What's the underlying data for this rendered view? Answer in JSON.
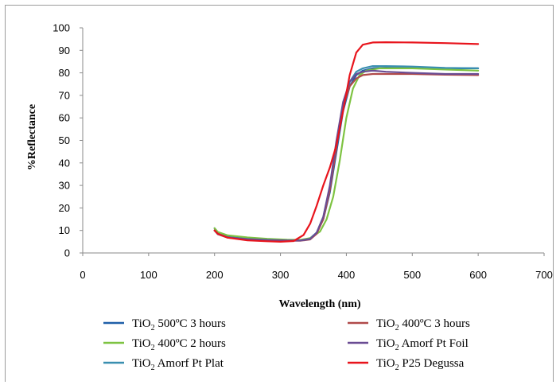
{
  "chart_data": {
    "type": "line",
    "title": "",
    "xlabel": "Wavelength (nm)",
    "ylabel": "%Reflectance",
    "xlim": [
      0,
      700
    ],
    "ylim": [
      0,
      100
    ],
    "xticks": [
      "0",
      "100",
      "200",
      "300",
      "400",
      "500",
      "600",
      "700"
    ],
    "yticks": [
      "0",
      "10",
      "20",
      "30",
      "40",
      "50",
      "60",
      "70",
      "80",
      "90",
      "100"
    ],
    "grid": false,
    "legend_position": "bottom",
    "series": [
      {
        "name": "TiO2 500ºC 3 hours",
        "color": "#1f5fa8",
        "points": [
          [
            200,
            11
          ],
          [
            205,
            8.8
          ],
          [
            220,
            7.2
          ],
          [
            250,
            6.4
          ],
          [
            280,
            5.9
          ],
          [
            310,
            5.6
          ],
          [
            330,
            5.6
          ],
          [
            345,
            6.5
          ],
          [
            355,
            9
          ],
          [
            365,
            15
          ],
          [
            375,
            27
          ],
          [
            385,
            45
          ],
          [
            395,
            63
          ],
          [
            405,
            74
          ],
          [
            415,
            79
          ],
          [
            425,
            81
          ],
          [
            440,
            82
          ],
          [
            460,
            82.3
          ],
          [
            500,
            82.2
          ],
          [
            550,
            82
          ],
          [
            600,
            82
          ]
        ]
      },
      {
        "name": "TiO2 400ºC 2 hours",
        "color": "#7ec342",
        "points": [
          [
            200,
            11
          ],
          [
            205,
            9.3
          ],
          [
            220,
            7.8
          ],
          [
            250,
            6.9
          ],
          [
            280,
            6.3
          ],
          [
            310,
            5.9
          ],
          [
            330,
            5.8
          ],
          [
            345,
            6.6
          ],
          [
            360,
            9.5
          ],
          [
            370,
            15
          ],
          [
            380,
            25
          ],
          [
            390,
            41
          ],
          [
            400,
            60
          ],
          [
            410,
            73
          ],
          [
            420,
            79
          ],
          [
            430,
            81
          ],
          [
            450,
            82
          ],
          [
            500,
            82
          ],
          [
            550,
            81.5
          ],
          [
            600,
            81
          ]
        ]
      },
      {
        "name": "TiO2 Amorf Pt Plat",
        "color": "#3a8fb0",
        "points": [
          [
            200,
            10
          ],
          [
            205,
            8.5
          ],
          [
            220,
            7
          ],
          [
            250,
            6.2
          ],
          [
            280,
            5.8
          ],
          [
            310,
            5.5
          ],
          [
            330,
            5.5
          ],
          [
            345,
            6.3
          ],
          [
            355,
            9
          ],
          [
            365,
            16
          ],
          [
            375,
            29
          ],
          [
            385,
            48
          ],
          [
            395,
            66
          ],
          [
            405,
            76
          ],
          [
            415,
            80.5
          ],
          [
            425,
            82
          ],
          [
            440,
            83
          ],
          [
            460,
            83
          ],
          [
            500,
            82.8
          ],
          [
            550,
            82.2
          ],
          [
            600,
            82
          ]
        ]
      },
      {
        "name": "TiO2 400ºC 3 hours",
        "color": "#b04a4a",
        "points": [
          [
            200,
            10
          ],
          [
            205,
            8.3
          ],
          [
            220,
            6.8
          ],
          [
            250,
            6
          ],
          [
            280,
            5.6
          ],
          [
            310,
            5.4
          ],
          [
            330,
            5.4
          ],
          [
            345,
            6
          ],
          [
            355,
            8.5
          ],
          [
            365,
            15
          ],
          [
            375,
            28
          ],
          [
            385,
            47
          ],
          [
            395,
            65
          ],
          [
            405,
            74
          ],
          [
            415,
            77.5
          ],
          [
            425,
            79
          ],
          [
            440,
            79.5
          ],
          [
            460,
            79.5
          ],
          [
            500,
            79.5
          ],
          [
            550,
            79.2
          ],
          [
            600,
            79
          ]
        ]
      },
      {
        "name": "TiO2 Amorf Pt Foil",
        "color": "#6a4c93",
        "points": [
          [
            200,
            10
          ],
          [
            205,
            8.4
          ],
          [
            220,
            6.9
          ],
          [
            250,
            6.1
          ],
          [
            280,
            5.7
          ],
          [
            310,
            5.5
          ],
          [
            330,
            5.5
          ],
          [
            345,
            6.2
          ],
          [
            355,
            9
          ],
          [
            365,
            16
          ],
          [
            375,
            30
          ],
          [
            385,
            50
          ],
          [
            395,
            67
          ],
          [
            405,
            76
          ],
          [
            415,
            79.5
          ],
          [
            425,
            80.5
          ],
          [
            440,
            81
          ],
          [
            460,
            80.5
          ],
          [
            500,
            80
          ],
          [
            550,
            79.5
          ],
          [
            600,
            79.5
          ]
        ]
      },
      {
        "name": "TiO2 P25 Degussa",
        "color": "#e8141c",
        "points": [
          [
            200,
            10
          ],
          [
            205,
            8.5
          ],
          [
            220,
            6.8
          ],
          [
            250,
            5.6
          ],
          [
            280,
            5.2
          ],
          [
            300,
            5
          ],
          [
            320,
            5.3
          ],
          [
            335,
            8
          ],
          [
            345,
            13
          ],
          [
            355,
            21
          ],
          [
            365,
            30
          ],
          [
            375,
            38
          ],
          [
            385,
            48
          ],
          [
            395,
            63
          ],
          [
            405,
            79
          ],
          [
            415,
            89
          ],
          [
            425,
            92.5
          ],
          [
            440,
            93.5
          ],
          [
            460,
            93.6
          ],
          [
            500,
            93.5
          ],
          [
            550,
            93.2
          ],
          [
            600,
            92.8
          ]
        ]
      }
    ]
  }
}
